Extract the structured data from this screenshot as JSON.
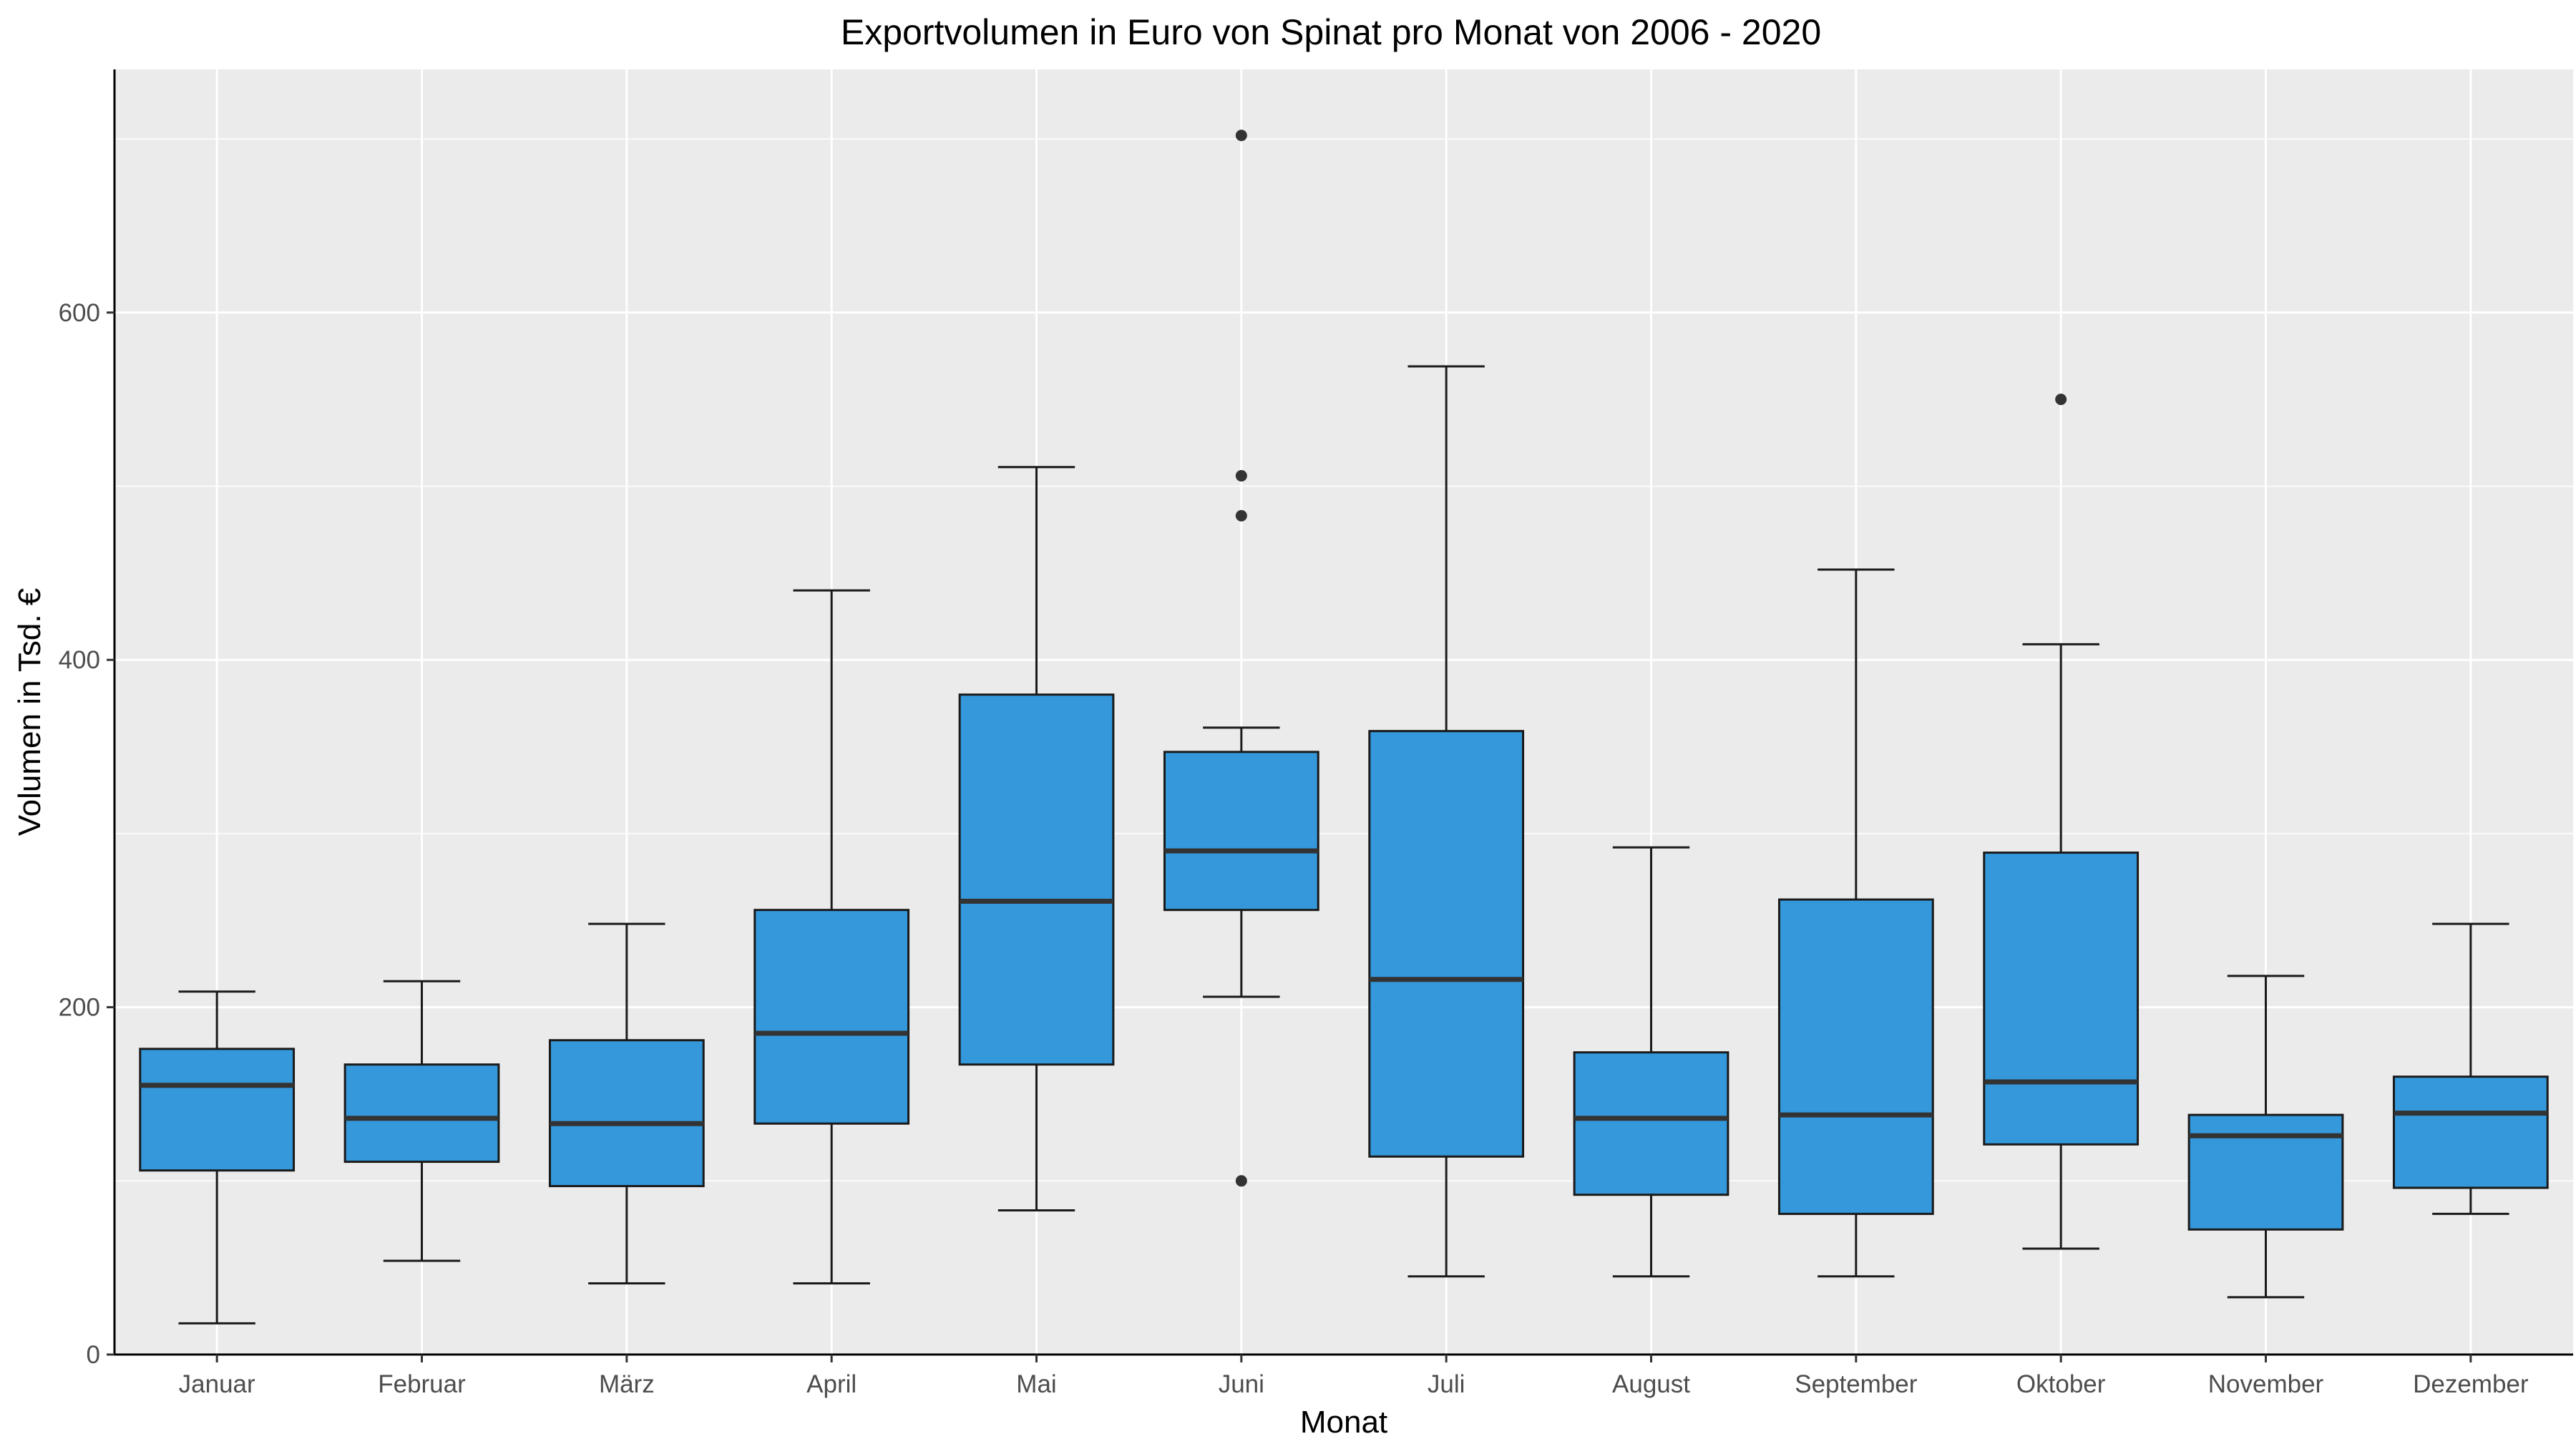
{
  "chart_data": {
    "type": "boxplot",
    "title": "Exportvolumen in Euro von Spinat pro Monat von 2006 - 2020",
    "xlabel": "Monat",
    "ylabel": "Volumen in Tsd. €",
    "ylim": [
      0,
      740
    ],
    "y_ticks": [
      0,
      200,
      400,
      600
    ],
    "grid": true,
    "categories": [
      "Januar",
      "Februar",
      "März",
      "April",
      "Mai",
      "Juni",
      "Juli",
      "August",
      "September",
      "Oktober",
      "November",
      "Dezember"
    ],
    "boxes": [
      {
        "category": "Januar",
        "whisker_low": 18,
        "q1": 106,
        "median": 155,
        "q3": 176,
        "whisker_high": 209,
        "outliers": []
      },
      {
        "category": "Februar",
        "whisker_low": 54,
        "q1": 111,
        "median": 136,
        "q3": 167,
        "whisker_high": 215,
        "outliers": []
      },
      {
        "category": "März",
        "whisker_low": 41,
        "q1": 97,
        "median": 133,
        "q3": 181,
        "whisker_high": 248,
        "outliers": []
      },
      {
        "category": "April",
        "whisker_low": 41,
        "q1": 133,
        "median": 185,
        "q3": 256,
        "whisker_high": 440,
        "outliers": []
      },
      {
        "category": "Mai",
        "whisker_low": 83,
        "q1": 167,
        "median": 261,
        "q3": 380,
        "whisker_high": 511,
        "outliers": []
      },
      {
        "category": "Juni",
        "whisker_low": 206,
        "q1": 256,
        "median": 290,
        "q3": 347,
        "whisker_high": 361,
        "outliers": [
          100,
          483,
          506,
          702
        ]
      },
      {
        "category": "Juli",
        "whisker_low": 45,
        "q1": 114,
        "median": 216,
        "q3": 359,
        "whisker_high": 569,
        "outliers": []
      },
      {
        "category": "August",
        "whisker_low": 45,
        "q1": 92,
        "median": 136,
        "q3": 174,
        "whisker_high": 292,
        "outliers": []
      },
      {
        "category": "September",
        "whisker_low": 45,
        "q1": 81,
        "median": 138,
        "q3": 262,
        "whisker_high": 452,
        "outliers": []
      },
      {
        "category": "Oktober",
        "whisker_low": 61,
        "q1": 121,
        "median": 157,
        "q3": 289,
        "whisker_high": 409,
        "outliers": [
          550
        ]
      },
      {
        "category": "November",
        "whisker_low": 33,
        "q1": 72,
        "median": 126,
        "q3": 138,
        "whisker_high": 218,
        "outliers": []
      },
      {
        "category": "Dezember",
        "whisker_low": 81,
        "q1": 96,
        "median": 139,
        "q3": 160,
        "whisker_high": 248,
        "outliers": []
      }
    ],
    "colors": {
      "box_fill": "#3498db",
      "box_stroke": "#1a1a1a",
      "median": "#333333",
      "panel_background": "#ebebeb",
      "grid": "#ffffff",
      "outlier": "#333333"
    }
  }
}
